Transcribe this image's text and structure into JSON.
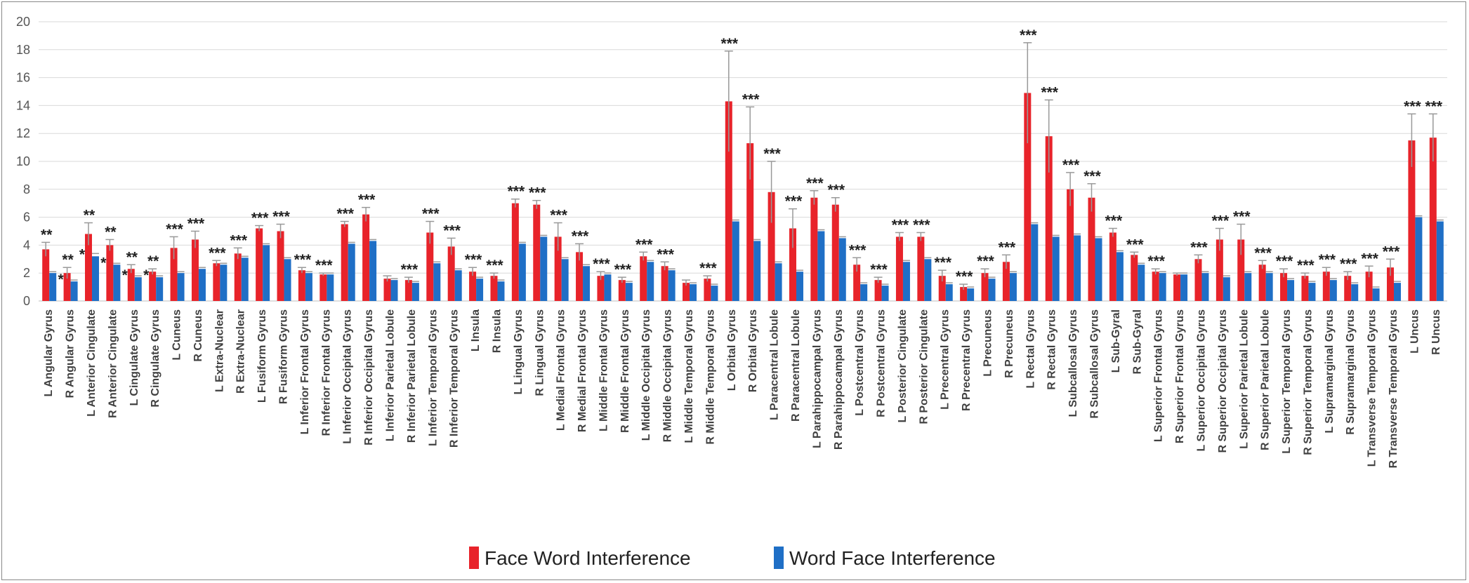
{
  "chart_data": {
    "type": "bar",
    "ylim": [
      0,
      20
    ],
    "yticks": [
      0,
      2,
      4,
      6,
      8,
      10,
      12,
      14,
      16,
      18,
      20
    ],
    "grid": true,
    "legend_position": "bottom-center",
    "colors": {
      "face_word": "#e8232a",
      "word_face": "#1f6fc6",
      "grid": "#d9d9d9",
      "error_bar": "#999999"
    },
    "categories": [
      "L Angular Gyrus",
      "R Angular Gyrus",
      "L Anterior Cingulate",
      "R Anterior Cingulate",
      "L Cingulate Gyrus",
      "R Cingulate Gyrus",
      "L Cuneus",
      "R Cuneus",
      "L Extra-Nuclear",
      "R Extra-Nuclear",
      "L Fusiform Gyrus",
      "R Fusiform Gyrus",
      "L Inferior Frontal Gyrus",
      "R Inferior Frontal Gyrus",
      "L Inferior Occipital Gyrus",
      "R Inferior Occipital Gyrus",
      "L Inferior Parietal Lobule",
      "R Inferior Parietal Lobule",
      "L Inferior Temporal Gyrus",
      "R Inferior Temporal Gyrus",
      "L Insula",
      "R Insula",
      "L Lingual Gyrus",
      "R Lingual Gyrus",
      "L Medial Frontal Gyrus",
      "R Medial Frontal Gyrus",
      "L Middle Frontal Gyrus",
      "R Middle Frontal Gyrus",
      "L Middle Occipital Gyrus",
      "R Middle Occipital Gyrus",
      "L Middle Temporal Gyrus",
      "R Middle Temporal Gyrus",
      "L Orbital Gyrus",
      "R Orbital Gyrus",
      "L Paracentral Lobule",
      "R Paracentral Lobule",
      "L Parahippocampal Gyrus",
      "R Parahippocampal Gyrus",
      "L Postcentral Gyrus",
      "R Postcentral Gyrus",
      "L Posterior Cingulate",
      "R Posterior Cingulate",
      "L Precentral Gyrus",
      "R Precentral Gyrus",
      "L Precuneus",
      "R Precuneus",
      "L Rectal Gyrus",
      "R Rectal Gyrus",
      "L Subcallosal Gyrus",
      "R Subcallosal Gyrus",
      "L Sub-Gyral",
      "R Sub-Gyral",
      "L Superior Frontal Gyrus",
      "R Superior Frontal Gyrus",
      "L Superior Occipital Gyrus",
      "R Superior Occipital Gyrus",
      "L Superior Parietal Lobule",
      "R Superior Parietal Lobule",
      "L Superior Temporal Gyrus",
      "R Superior Temporal Gyrus",
      "L Supramarginal Gyrus",
      "R Supramarginal Gyrus",
      "L Transverse Temporal Gyrus",
      "R Transverse Temporal Gyrus",
      "L Uncus",
      "R Uncus"
    ],
    "series": [
      {
        "name": "Face Word Interference",
        "values": [
          3.7,
          2.0,
          4.8,
          4.0,
          2.3,
          2.1,
          3.8,
          4.4,
          2.7,
          3.4,
          5.2,
          5.0,
          2.2,
          1.9,
          5.5,
          6.2,
          1.6,
          1.5,
          4.9,
          3.9,
          2.1,
          1.8,
          7.0,
          6.9,
          4.6,
          3.5,
          1.8,
          1.5,
          3.2,
          2.5,
          1.3,
          1.6,
          14.3,
          11.3,
          7.8,
          5.2,
          7.4,
          6.9,
          2.6,
          1.5,
          4.6,
          4.6,
          1.8,
          1.0,
          2.0,
          2.8,
          14.9,
          11.8,
          8.0,
          7.4,
          4.9,
          3.3,
          2.1,
          1.9,
          3.0,
          4.4,
          4.4,
          2.6,
          2.0,
          1.8,
          2.1,
          1.8,
          2.1,
          2.4,
          11.5,
          11.7
        ]
      },
      {
        "name": "Word Face Interference",
        "values": [
          2.0,
          1.4,
          3.2,
          2.6,
          1.7,
          1.7,
          2.0,
          2.3,
          2.6,
          3.1,
          4.0,
          3.0,
          2.0,
          1.9,
          4.1,
          4.3,
          1.5,
          1.3,
          2.7,
          2.2,
          1.6,
          1.4,
          4.1,
          4.6,
          3.0,
          2.5,
          1.9,
          1.3,
          2.8,
          2.2,
          1.2,
          1.1,
          5.7,
          4.3,
          2.7,
          2.1,
          5.0,
          4.5,
          1.2,
          1.1,
          2.8,
          3.0,
          1.2,
          0.9,
          1.6,
          2.0,
          5.5,
          4.6,
          4.7,
          4.5,
          3.5,
          2.6,
          2.0,
          1.9,
          2.0,
          1.7,
          2.0,
          2.0,
          1.5,
          1.3,
          1.5,
          1.2,
          0.9,
          1.3,
          6.0,
          5.7
        ]
      }
    ],
    "errors": [
      [
        0.5,
        0.4,
        0.8,
        0.4,
        0.3,
        0.2,
        0.8,
        0.6,
        0.2,
        0.4,
        0.2,
        0.5,
        0.2,
        0.1,
        0.2,
        0.5,
        0.2,
        0.2,
        0.8,
        0.6,
        0.3,
        0.2,
        0.3,
        0.3,
        1.0,
        0.6,
        0.3,
        0.2,
        0.3,
        0.3,
        0.2,
        0.2,
        3.6,
        2.6,
        2.2,
        1.4,
        0.5,
        0.5,
        0.5,
        0.2,
        0.3,
        0.3,
        0.4,
        0.2,
        0.3,
        0.5,
        3.6,
        2.6,
        1.2,
        1.0,
        0.3,
        0.2,
        0.2,
        0.1,
        0.3,
        0.8,
        1.1,
        0.3,
        0.3,
        0.2,
        0.3,
        0.3,
        0.4,
        0.6,
        1.9,
        1.7
      ],
      [
        0.1,
        0.1,
        0.2,
        0.1,
        0.1,
        0.1,
        0.1,
        0.1,
        0.1,
        0.1,
        0.1,
        0.1,
        0.1,
        0.1,
        0.1,
        0.1,
        0.1,
        0.1,
        0.1,
        0.1,
        0.1,
        0.1,
        0.1,
        0.1,
        0.1,
        0.1,
        0.1,
        0.1,
        0.1,
        0.1,
        0.1,
        0.1,
        0.1,
        0.1,
        0.1,
        0.1,
        0.1,
        0.1,
        0.1,
        0.1,
        0.1,
        0.1,
        0.1,
        0.1,
        0.1,
        0.1,
        0.1,
        0.1,
        0.1,
        0.1,
        0.1,
        0.1,
        0.1,
        0.1,
        0.1,
        0.1,
        0.1,
        0.1,
        0.1,
        0.1,
        0.1,
        0.1,
        0.1,
        0.1,
        0.1,
        0.1
      ]
    ],
    "significance": [
      "**",
      "**",
      "**",
      "**",
      "**",
      "**",
      "***",
      "***",
      "***",
      "***",
      "***",
      "***",
      "***",
      "***",
      "***",
      "***",
      "",
      "***",
      "***",
      "***",
      "***",
      "***",
      "***",
      "***",
      "***",
      "***",
      "***",
      "***",
      "***",
      "***",
      "",
      "***",
      "***",
      "***",
      "***",
      "***",
      "***",
      "***",
      "***",
      "***",
      "***",
      "***",
      "***",
      "***",
      "***",
      "***",
      "***",
      "***",
      "***",
      "***",
      "***",
      "***",
      "***",
      "",
      "***",
      "***",
      "***",
      "***",
      "***",
      "***",
      "***",
      "***",
      "***",
      "***",
      "***",
      "***"
    ],
    "significance_secondary": [
      "",
      "*",
      "*",
      "*",
      "*",
      "*",
      "",
      "",
      "",
      "",
      "",
      "",
      "",
      "",
      "",
      "",
      "",
      "",
      "",
      "",
      "",
      "",
      "",
      "",
      "",
      "",
      "",
      "",
      "",
      "",
      "",
      "",
      "",
      "",
      "",
      "",
      "",
      "",
      "",
      "",
      "",
      "",
      "",
      "",
      "",
      "",
      "",
      "",
      "",
      "",
      "",
      "",
      "",
      "",
      "",
      "",
      "",
      "",
      "",
      "",
      "",
      "",
      "",
      "",
      "",
      ""
    ]
  }
}
